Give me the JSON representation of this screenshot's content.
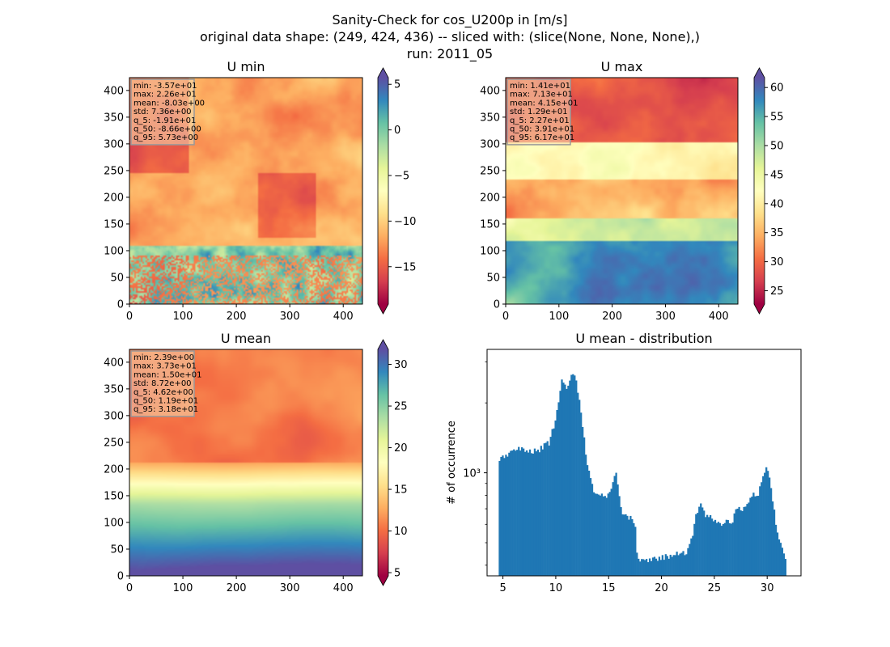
{
  "figure": {
    "title_lines": [
      "Sanity-Check for cos_U200p in [m/s]",
      "original data shape: (249, 424, 436) -- sliced with: (slice(None, None, None),)",
      "run: 2011_05"
    ]
  },
  "chart_data": [
    {
      "type": "heatmap",
      "title": "U min",
      "xlim": [
        0,
        436
      ],
      "ylim": [
        0,
        424
      ],
      "xticks": [
        0,
        100,
        200,
        300,
        400
      ],
      "yticks": [
        0,
        50,
        100,
        150,
        200,
        250,
        300,
        350,
        400
      ],
      "colormap": "Spectral",
      "colorbar": {
        "range": [
          -19.1,
          5.73
        ],
        "ticks": [
          5,
          0,
          -5,
          -10,
          -15
        ]
      },
      "stats": [
        "min: -3.57e+01",
        "max: 2.26e+01",
        "mean: -8.03e+00",
        "std: 7.36e+00",
        "q_5: -1.91e+01",
        "q_50: -8.66e+00",
        "q_95: 5.73e+00"
      ]
    },
    {
      "type": "heatmap",
      "title": "U max",
      "xlim": [
        0,
        436
      ],
      "ylim": [
        0,
        424
      ],
      "xticks": [
        0,
        100,
        200,
        300,
        400
      ],
      "yticks": [
        0,
        50,
        100,
        150,
        200,
        250,
        300,
        350,
        400
      ],
      "colormap": "Spectral",
      "colorbar": {
        "range": [
          22.7,
          61.7
        ],
        "ticks": [
          60,
          55,
          50,
          45,
          40,
          35,
          30,
          25
        ]
      },
      "stats": [
        "min: 1.41e+01",
        "max: 7.13e+01",
        "mean: 4.15e+01",
        "std: 1.29e+01",
        "q_5: 2.27e+01",
        "q_50: 3.91e+01",
        "q_95: 6.17e+01"
      ]
    },
    {
      "type": "heatmap",
      "title": "U mean",
      "xlim": [
        0,
        436
      ],
      "ylim": [
        0,
        424
      ],
      "xticks": [
        0,
        100,
        200,
        300,
        400
      ],
      "yticks": [
        0,
        50,
        100,
        150,
        200,
        250,
        300,
        350,
        400
      ],
      "colormap": "Spectral",
      "colorbar": {
        "range": [
          4.62,
          31.8
        ],
        "ticks": [
          30,
          25,
          20,
          15,
          10,
          5
        ]
      },
      "stats": [
        "min: 2.39e+00",
        "max: 3.73e+01",
        "mean: 1.50e+01",
        "std: 8.72e+00",
        "q_5: 4.62e+00",
        "q_50: 1.19e+01",
        "q_95: 3.18e+01"
      ]
    },
    {
      "type": "bar",
      "title": "U mean - distribution",
      "xlabel": "",
      "ylabel": "# of occurrence",
      "xlim": [
        3.5,
        33.2
      ],
      "xticks": [
        5,
        10,
        15,
        20,
        25,
        30
      ],
      "yscale": "log",
      "ylim": [
        360,
        3400
      ],
      "ytick_label": "10³",
      "ytick_value": 1000,
      "color": "#1f77b4",
      "x": [
        4.6,
        6.6,
        8.2,
        9.4,
        10.1,
        10.6,
        11.1,
        11.7,
        12.2,
        12.6,
        13.0,
        13.6,
        14.3,
        15.0,
        15.7,
        16.2,
        16.6,
        17.2,
        17.5,
        17.7,
        18.5,
        19.5,
        20.5,
        21.5,
        22.5,
        22.9,
        23.3,
        23.8,
        24.2,
        24.6,
        25.1,
        25.6,
        26.1,
        26.6,
        27.1,
        27.6,
        28.1,
        28.6,
        29.1,
        29.6,
        30.0,
        30.5,
        31.0,
        31.4,
        31.8
      ],
      "y": [
        1150,
        1270,
        1240,
        1350,
        1800,
        2500,
        2300,
        2750,
        2100,
        1500,
        1050,
        830,
        800,
        790,
        1000,
        680,
        650,
        630,
        600,
        420,
        420,
        425,
        435,
        445,
        460,
        530,
        680,
        730,
        650,
        660,
        615,
        600,
        630,
        600,
        690,
        700,
        740,
        820,
        790,
        950,
        1060,
        780,
        530,
        470,
        420
      ]
    }
  ]
}
